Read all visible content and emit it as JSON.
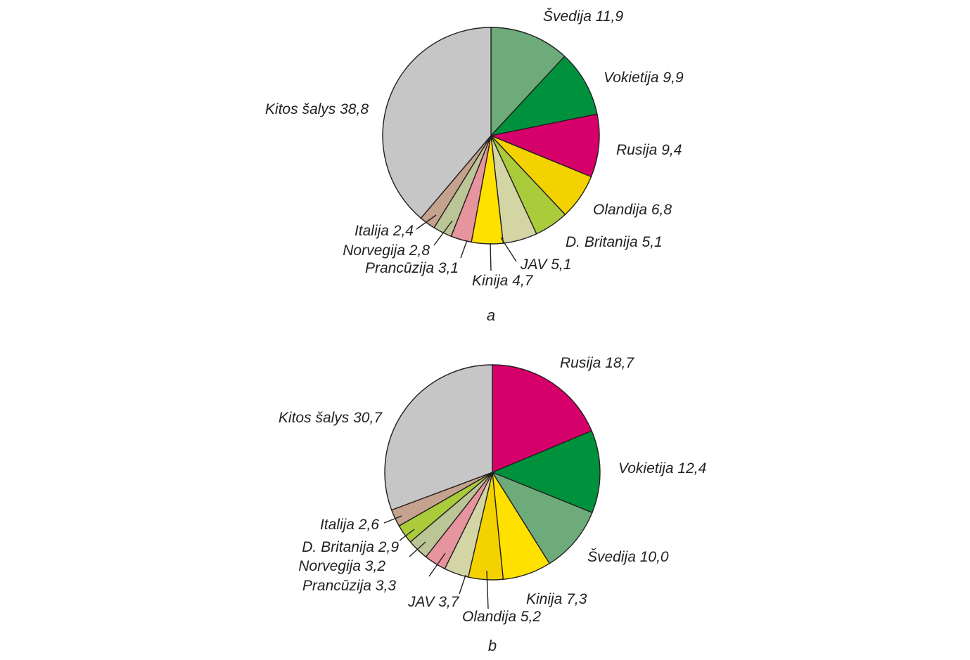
{
  "chart_data": [
    {
      "type": "pie",
      "panel_label": "a",
      "slices": [
        {
          "label": "Švedija 11,9",
          "value": 11.9,
          "color": "#6dab7b"
        },
        {
          "label": "Vokietija 9,9",
          "value": 9.9,
          "color": "#00913c"
        },
        {
          "label": "Rusija 9,4",
          "value": 9.4,
          "color": "#d6006a"
        },
        {
          "label": "Olandija 6,8",
          "value": 6.8,
          "color": "#f3d200"
        },
        {
          "label": "D. Britanija 5,1",
          "value": 5.1,
          "color": "#aacb3a"
        },
        {
          "label": "JAV 5,1",
          "value": 5.1,
          "color": "#d3d6a4"
        },
        {
          "label": "Kinija 4,7",
          "value": 4.7,
          "color": "#ffe100"
        },
        {
          "label": "Prancūzija 3,1",
          "value": 3.1,
          "color": "#e6949d"
        },
        {
          "label": "Norvegija 2,8",
          "value": 2.8,
          "color": "#bcc596"
        },
        {
          "label": "Italija 2,4",
          "value": 2.4,
          "color": "#c4a28e"
        },
        {
          "label": "Kitos šalys 38,8",
          "value": 38.8,
          "color": "#c6c6c6"
        }
      ]
    },
    {
      "type": "pie",
      "panel_label": "b",
      "slices": [
        {
          "label": "Rusija 18,7",
          "value": 18.7,
          "color": "#d6006a"
        },
        {
          "label": "Vokietija 12,4",
          "value": 12.4,
          "color": "#00913c"
        },
        {
          "label": "Švedija 10,0",
          "value": 10.0,
          "color": "#6dab7b"
        },
        {
          "label": "Kinija 7,3",
          "value": 7.3,
          "color": "#ffe100"
        },
        {
          "label": "Olandija 5,2",
          "value": 5.2,
          "color": "#f3d200"
        },
        {
          "label": "JAV 3,7",
          "value": 3.7,
          "color": "#d3d6a4"
        },
        {
          "label": "Prancūzija 3,3",
          "value": 3.3,
          "color": "#e6949d"
        },
        {
          "label": "Norvegija 3,2",
          "value": 3.2,
          "color": "#bcc596"
        },
        {
          "label": "D. Britanija 2,9",
          "value": 2.9,
          "color": "#aacb3a"
        },
        {
          "label": "Italija 2,6",
          "value": 2.6,
          "color": "#c4a28e"
        },
        {
          "label": "Kitos šalys 30,7",
          "value": 30.7,
          "color": "#c6c6c6"
        }
      ]
    }
  ]
}
